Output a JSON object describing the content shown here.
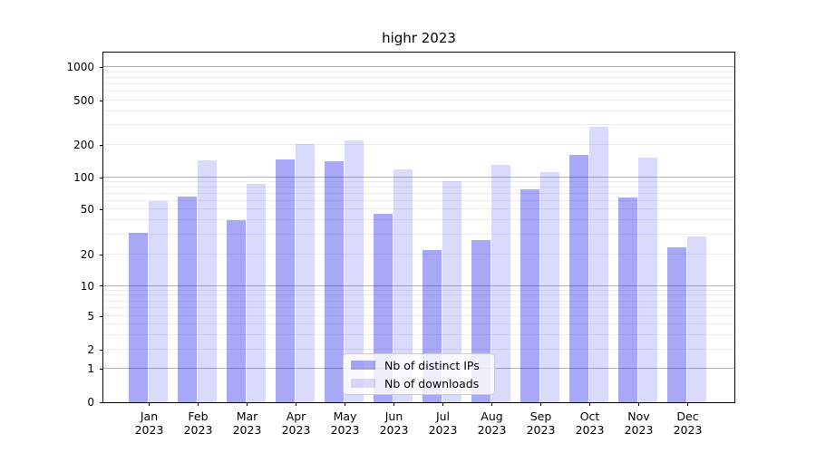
{
  "title": "highr 2023",
  "legend": {
    "items": [
      {
        "label": "Nb of distinct IPs",
        "color": "rgba(0,0,230,0.34)"
      },
      {
        "label": "Nb of downloads",
        "color": "rgba(0,0,230,0.145)"
      }
    ]
  },
  "chart_data": {
    "type": "bar",
    "title": "highr 2023",
    "categories": [
      "Jan",
      "Feb",
      "Mar",
      "Apr",
      "May",
      "Jun",
      "Jul",
      "Aug",
      "Sep",
      "Oct",
      "Nov",
      "Dec"
    ],
    "year_label": "2023",
    "series": [
      {
        "name": "Nb of distinct IPs",
        "color": "rgba(0,0,230,0.34)",
        "values": [
          31,
          66,
          40,
          147,
          141,
          46,
          22,
          27,
          78,
          162,
          65,
          23
        ]
      },
      {
        "name": "Nb of downloads",
        "color": "rgba(0,0,230,0.145)",
        "values": [
          60,
          143,
          87,
          205,
          220,
          120,
          92,
          130,
          113,
          290,
          152,
          29
        ]
      }
    ],
    "xlabel": "",
    "ylabel": "",
    "y_scale": "symlog",
    "y_ticks": [
      0,
      1,
      2,
      5,
      10,
      20,
      50,
      100,
      200,
      500,
      1000
    ],
    "ylim": [
      0,
      1400
    ],
    "grid": "horizontal major+minor",
    "legend_position": "inside lower-center"
  }
}
